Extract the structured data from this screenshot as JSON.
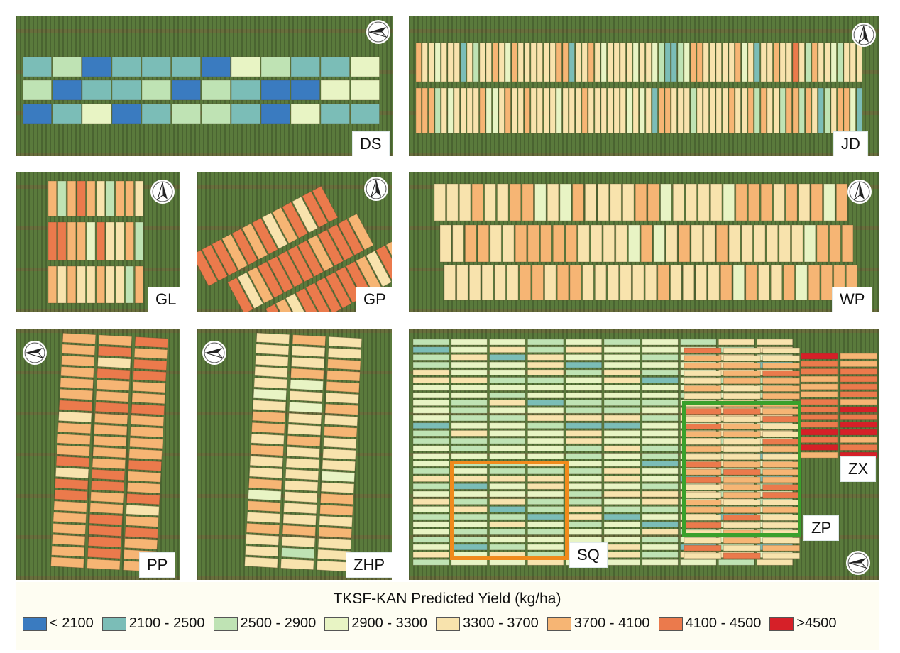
{
  "palette": {
    "lt2100": "#3a7bc0",
    "b2100_2500": "#7bbdb7",
    "b2500_2900": "#bfe3b4",
    "b2900_3300": "#e8f4c4",
    "b3300_3700": "#f8e3ad",
    "b3700_4100": "#f6b574",
    "b4100_4500": "#eb7a4c",
    "gt4500": "#d62028"
  },
  "north_arrow": {
    "icon": "north-arrow-icon"
  },
  "panels": [
    {
      "id": "DS",
      "label": "DS",
      "north_direction": "west"
    },
    {
      "id": "JD",
      "label": "JD",
      "north_direction": "north"
    },
    {
      "id": "GL",
      "label": "GL",
      "north_direction": "north"
    },
    {
      "id": "GP",
      "label": "GP",
      "north_direction": "north"
    },
    {
      "id": "WP",
      "label": "WP",
      "north_direction": "north"
    },
    {
      "id": "PP",
      "label": "PP",
      "north_direction": "west"
    },
    {
      "id": "ZHP",
      "label": "ZHP",
      "north_direction": "west"
    },
    {
      "id": "ZPSQ",
      "labels": [
        "ZX",
        "ZP",
        "SQ"
      ],
      "north_direction": "west",
      "highlight_boxes": [
        {
          "label": "SQ",
          "color": "#f08a1c"
        },
        {
          "label": "ZP",
          "color": "#3aa02c"
        }
      ]
    }
  ],
  "legend": {
    "title": "TKSF-KAN Predicted Yield (kg/ha)",
    "items": [
      {
        "label": "< 2100",
        "color": "#3a7bc0"
      },
      {
        "label": "2100 - 2500",
        "color": "#7bbdb7"
      },
      {
        "label": "2500 - 2900",
        "color": "#bfe3b4"
      },
      {
        "label": "2900 - 3300",
        "color": "#e8f4c4"
      },
      {
        "label": "3300 - 3700",
        "color": "#f8e3ad"
      },
      {
        "label": "3700 - 4100",
        "color": "#f6b574"
      },
      {
        "label": "4100 - 4500",
        "color": "#eb7a4c"
      },
      {
        "label": ">4500",
        "color": "#d62028"
      }
    ]
  }
}
